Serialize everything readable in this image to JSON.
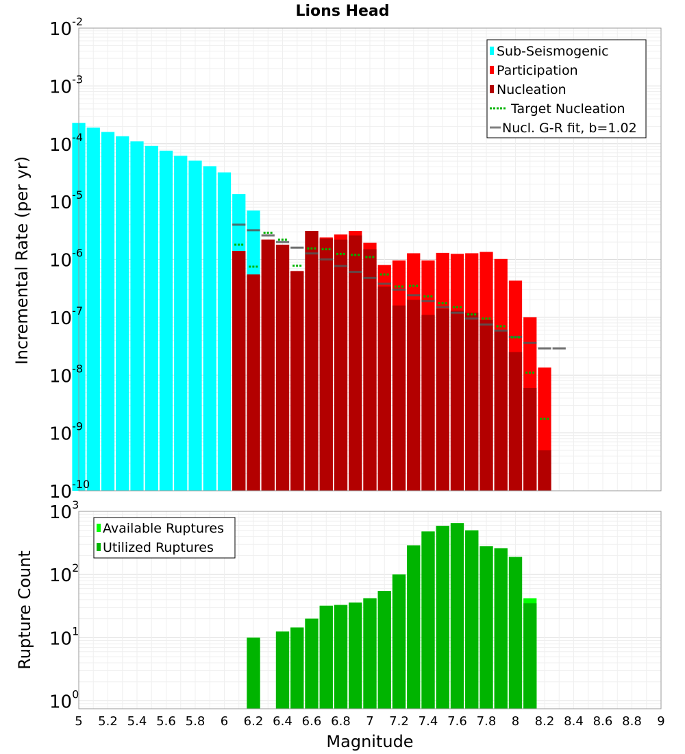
{
  "chart_data": [
    {
      "type": "bar",
      "title": "Lions Head",
      "xlabel": "",
      "ylabel": "Incremental Rate (per yr)",
      "yscale": "log",
      "ylim": [
        1e-10,
        0.01
      ],
      "y_ticks": [
        {
          "base": "10",
          "exp": "-10"
        },
        {
          "base": "10",
          "exp": "-9"
        },
        {
          "base": "10",
          "exp": "-8"
        },
        {
          "base": "10",
          "exp": "-7"
        },
        {
          "base": "10",
          "exp": "-6"
        },
        {
          "base": "10",
          "exp": "-5"
        },
        {
          "base": "10",
          "exp": "-4"
        },
        {
          "base": "10",
          "exp": "-3"
        },
        {
          "base": "10",
          "exp": "-2"
        }
      ],
      "xlim": [
        5,
        9
      ],
      "bin_width": 0.1,
      "legend_position": "top-right",
      "legend": [
        {
          "label": "Sub-Seismogenic",
          "color": "#00ffff",
          "style": "box"
        },
        {
          "label": "Participation",
          "color": "#ff0000",
          "style": "box"
        },
        {
          "label": "Nucleation",
          "color": "#b30000",
          "style": "box"
        },
        {
          "label": "Target Nucleation",
          "color": "#00b400",
          "style": "dotted"
        },
        {
          "label": "Nucl. G-R fit, b=1.02",
          "color": "#808080",
          "style": "line"
        }
      ],
      "series": [
        {
          "name": "Sub-Seismogenic",
          "color": "#00ffff",
          "x": [
            5.0,
            5.1,
            5.2,
            5.3,
            5.4,
            5.5,
            5.6,
            5.7,
            5.8,
            5.9,
            6.0,
            6.1,
            6.2
          ],
          "values": [
            0.00023,
            0.00019,
            0.00016,
            0.000135,
            0.00011,
            9.2e-05,
            7.6e-05,
            6.2e-05,
            5.1e-05,
            4.1e-05,
            3.2e-05,
            1.35e-05,
            7e-06
          ]
        },
        {
          "name": "Participation",
          "color": "#ff0000",
          "x": [
            6.1,
            6.2,
            6.3,
            6.4,
            6.5,
            6.6,
            6.7,
            6.8,
            6.9,
            7.0,
            7.1,
            7.2,
            7.3,
            7.4,
            7.5,
            7.6,
            7.7,
            7.8,
            7.9,
            8.0,
            8.1,
            8.2
          ],
          "values": [
            1.4e-06,
            5.5e-07,
            2.2e-06,
            1.8e-06,
            6.3e-07,
            3.1e-06,
            2.4e-06,
            2.7e-06,
            3.1e-06,
            1.95e-06,
            8e-07,
            9.6e-07,
            1.28e-06,
            9.6e-07,
            1.3e-06,
            1.25e-06,
            1.28e-06,
            1.35e-06,
            1.02e-06,
            4.3e-07,
            1e-07,
            1.35e-08
          ]
        },
        {
          "name": "Nucleation",
          "color": "#b30000",
          "x": [
            6.1,
            6.2,
            6.3,
            6.4,
            6.5,
            6.6,
            6.7,
            6.8,
            6.9,
            7.0,
            7.1,
            7.2,
            7.3,
            7.4,
            7.5,
            7.6,
            7.7,
            7.8,
            7.9,
            8.0,
            8.1,
            8.2
          ],
          "values": [
            1.4e-06,
            5.5e-07,
            2.2e-06,
            1.8e-06,
            6.3e-07,
            3.1e-06,
            2.3e-06,
            2.2e-06,
            2.6e-06,
            1.5e-06,
            3.4e-07,
            1.6e-07,
            2e-07,
            1.1e-07,
            1.4e-07,
            1.3e-07,
            1.2e-07,
            9e-08,
            6e-08,
            2.5e-08,
            6e-09,
            5e-10
          ]
        },
        {
          "name": "Target Nucleation",
          "color": "#00b400",
          "x": [
            6.1,
            6.2,
            6.3,
            6.4,
            6.5,
            6.6,
            6.7,
            6.8,
            6.9,
            7.0,
            7.1,
            7.2,
            7.3,
            7.4,
            7.5,
            7.6,
            7.7,
            7.8,
            7.9,
            8.0,
            8.1,
            8.2
          ],
          "values": [
            1.8e-06,
            7.5e-07,
            2.9e-06,
            2.2e-06,
            7.8e-07,
            1.55e-06,
            1.5e-06,
            1.25e-06,
            1.2e-06,
            1.1e-06,
            5.5e-07,
            3.4e-07,
            3.5e-07,
            2.3e-07,
            1.75e-07,
            1.5e-07,
            1.12e-07,
            9.5e-08,
            7e-08,
            4.5e-08,
            1.1e-08,
            1.75e-09
          ]
        },
        {
          "name": "Nucl. G-R fit, b=1.02",
          "color": "#808080",
          "x": [
            6.1,
            6.2,
            6.3,
            6.4,
            6.5,
            6.6,
            6.7,
            6.8,
            6.9,
            7.0,
            7.1,
            7.2,
            7.3,
            7.4,
            7.5,
            7.6,
            7.7,
            7.8,
            7.9,
            8.0,
            8.1,
            8.2,
            8.3
          ],
          "values": [
            4e-06,
            3.2e-06,
            2.6e-06,
            2e-06,
            1.6e-06,
            1.27e-06,
            1e-06,
            7.7e-07,
            6.1e-07,
            4.8e-07,
            3.8e-07,
            3e-07,
            2.4e-07,
            1.9e-07,
            1.5e-07,
            1.2e-07,
            9.5e-08,
            7.5e-08,
            5.9e-08,
            4.6e-08,
            3.6e-08,
            2.9e-08,
            2.9e-08
          ]
        }
      ]
    },
    {
      "type": "bar",
      "title": "",
      "xlabel": "Magnitude",
      "ylabel": "Rupture Count",
      "yscale": "log",
      "ylim": [
        0.75,
        1000
      ],
      "y_ticks": [
        {
          "base": "10",
          "exp": "0"
        },
        {
          "base": "10",
          "exp": "1"
        },
        {
          "base": "10",
          "exp": "2"
        },
        {
          "base": "10",
          "exp": "3"
        }
      ],
      "xlim": [
        5,
        9
      ],
      "bin_width": 0.1,
      "x_ticks": [
        "5",
        "5.2",
        "5.4",
        "5.6",
        "5.8",
        "6",
        "6.2",
        "6.4",
        "6.6",
        "6.8",
        "7",
        "7.2",
        "7.4",
        "7.6",
        "7.8",
        "8",
        "8.2",
        "8.4",
        "8.6",
        "8.8",
        "9"
      ],
      "legend_position": "top-left",
      "legend": [
        {
          "label": "Available Ruptures",
          "color": "#00ff00",
          "style": "box"
        },
        {
          "label": "Utilized Ruptures",
          "color": "#00b400",
          "style": "box"
        }
      ],
      "series": [
        {
          "name": "Available Ruptures",
          "color": "#00ff00",
          "x": [
            6.2,
            6.4,
            6.5,
            6.6,
            6.7,
            6.8,
            6.9,
            7.0,
            7.1,
            7.2,
            7.3,
            7.4,
            7.5,
            7.6,
            7.7,
            7.8,
            7.9,
            8.0,
            8.1
          ],
          "values": [
            10,
            12.5,
            14.5,
            20,
            32,
            33,
            36,
            42,
            55,
            100,
            290,
            480,
            590,
            650,
            500,
            280,
            260,
            190,
            42
          ]
        },
        {
          "name": "Utilized Ruptures",
          "color": "#00b400",
          "x": [
            6.2,
            6.4,
            6.5,
            6.6,
            6.7,
            6.8,
            6.9,
            7.0,
            7.1,
            7.2,
            7.3,
            7.4,
            7.5,
            7.6,
            7.7,
            7.8,
            7.9,
            8.0,
            8.1
          ],
          "values": [
            10,
            12.5,
            14.5,
            20,
            32,
            33,
            36,
            42,
            55,
            100,
            290,
            480,
            590,
            650,
            500,
            280,
            260,
            190,
            35
          ]
        }
      ]
    }
  ]
}
